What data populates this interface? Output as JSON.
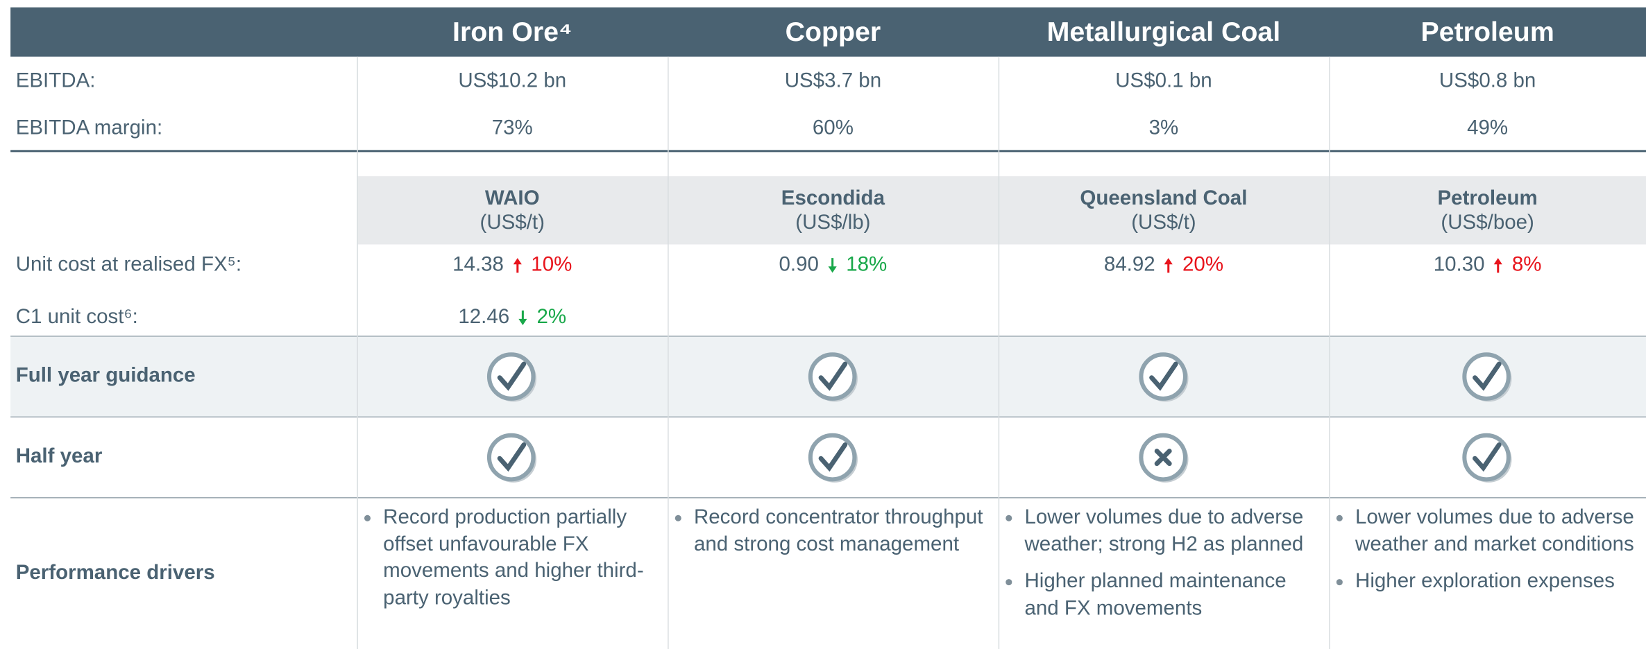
{
  "header": {
    "columns": [
      "Iron Ore⁴",
      "Copper",
      "Metallurgical Coal",
      "Petroleum"
    ]
  },
  "ebitda": {
    "label": "EBITDA:",
    "values": [
      "US$10.2 bn",
      "US$3.7 bn",
      "US$0.1 bn",
      "US$0.8 bn"
    ]
  },
  "ebitda_margin": {
    "label": "EBITDA margin:",
    "values": [
      "73%",
      "60%",
      "3%",
      "49%"
    ]
  },
  "assets": [
    {
      "name": "WAIO",
      "unit": "(US$/t)"
    },
    {
      "name": "Escondida",
      "unit": "(US$/lb)"
    },
    {
      "name": "Queensland Coal",
      "unit": "(US$/t)"
    },
    {
      "name": "Petroleum",
      "unit": "(US$/boe)"
    }
  ],
  "unit_cost": {
    "label": "Unit cost at realised FX⁵:",
    "values": [
      {
        "value": "14.38",
        "change": "10%",
        "direction": "up"
      },
      {
        "value": "0.90",
        "change": "18%",
        "direction": "down"
      },
      {
        "value": "84.92",
        "change": "20%",
        "direction": "up"
      },
      {
        "value": "10.30",
        "change": "8%",
        "direction": "up"
      }
    ]
  },
  "c1_unit_cost": {
    "label": "C1 unit cost⁶:",
    "values": [
      {
        "value": "12.46",
        "change": "2%",
        "direction": "down"
      },
      null,
      null,
      null
    ]
  },
  "full_year_guidance": {
    "label": "Full year guidance",
    "status": [
      "met",
      "met",
      "met",
      "met"
    ]
  },
  "half_year": {
    "label": "Half year",
    "status": [
      "met",
      "met",
      "missed",
      "met"
    ]
  },
  "performance_drivers": {
    "label": "Performance drivers",
    "items": [
      [
        "Record production partially offset unfavourable FX movements and higher third-party royalties"
      ],
      [
        "Record concentrator throughput and strong cost management"
      ],
      [
        "Lower volumes due to adverse weather; strong H2 as planned",
        "Higher planned maintenance and FX movements"
      ],
      [
        "Lower volumes due to adverse weather and market conditions",
        "Higher exploration expenses"
      ]
    ]
  }
}
